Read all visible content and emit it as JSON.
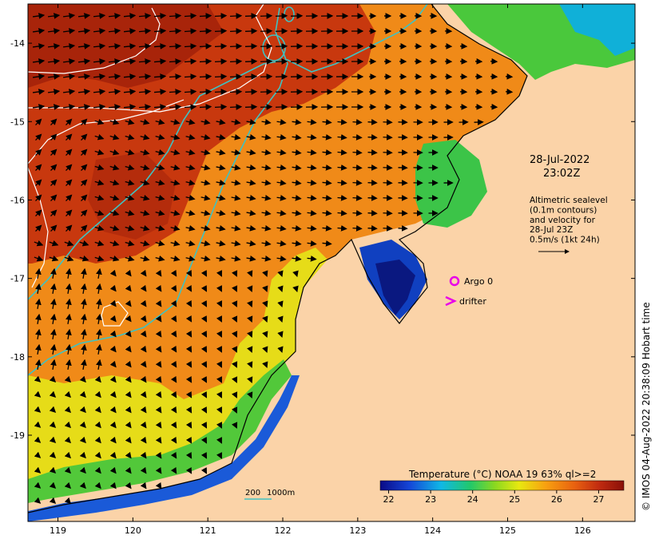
{
  "map": {
    "lat_ticks": [
      "-14",
      "-15",
      "-16",
      "-17",
      "-18",
      "-19"
    ],
    "lon_ticks": [
      "119",
      "120",
      "121",
      "122",
      "123",
      "124",
      "125",
      "126"
    ],
    "lat_range": [
      -20.1,
      -13.5
    ],
    "lon_range": [
      118.6,
      126.7
    ]
  },
  "annotations": {
    "date": "28-Jul-2022",
    "time": "23:02Z",
    "altimetry_lines": [
      "Altimetric sealevel",
      "(0.1m contours)",
      "and velocity for",
      "28-Jul 23Z",
      "0.5m/s (1kt 24h)"
    ],
    "argo_label": "Argo 0",
    "drifter_label": "drifter",
    "depth_label_200": "200",
    "depth_label_1000": "1000m"
  },
  "colorbar": {
    "title": "Temperature (°C) NOAA 19 63% ql>=2",
    "ticks": [
      "22",
      "23",
      "24",
      "25",
      "26",
      "27"
    ],
    "range": [
      21.8,
      27.6
    ]
  },
  "credit": "© IMOS 04-Aug-2022 20:38:09 Hobart time",
  "colors": {
    "land": "#fbd3a8",
    "isobath_200": "#3fc2c2",
    "argo": "#e800e8",
    "drifter": "#e800e8",
    "contour": "#ffffff"
  }
}
